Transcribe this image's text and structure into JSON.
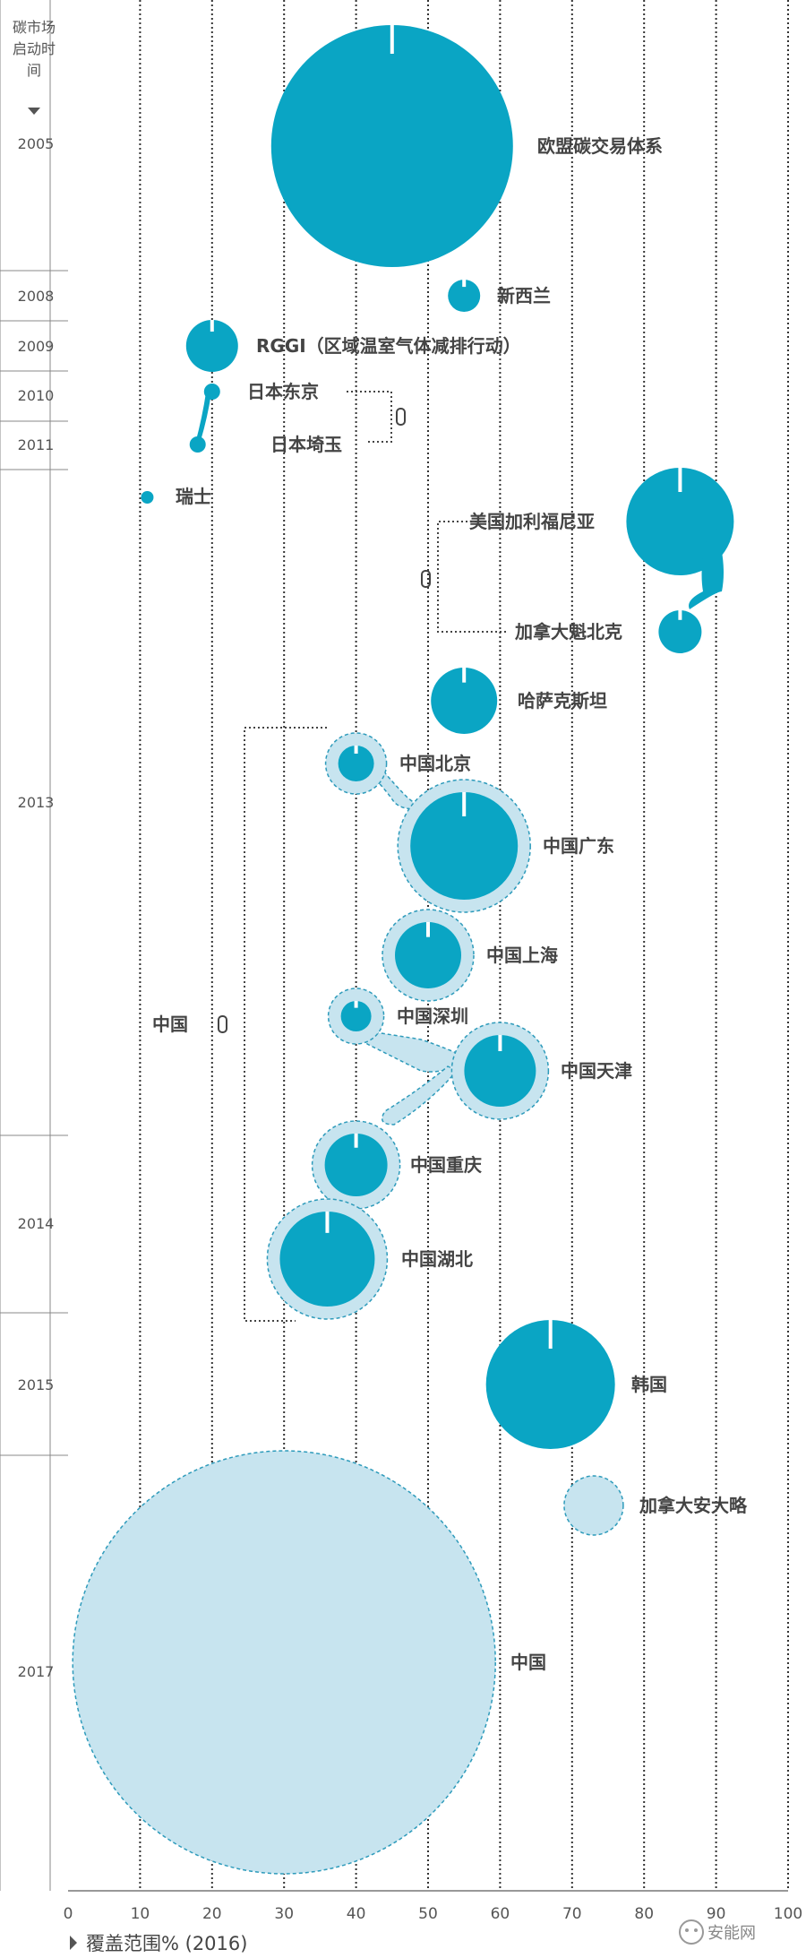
{
  "chart_data": {
    "type": "scatter",
    "title": "",
    "ytitle_lines": [
      "碳市场",
      "启动时",
      "间"
    ],
    "xlabel": "覆盖范围% (2016)",
    "xlim": [
      0,
      100
    ],
    "xticks": [
      0,
      10,
      20,
      30,
      40,
      50,
      60,
      70,
      80,
      90,
      100
    ],
    "years": [
      "2005",
      "2008",
      "2009",
      "2010",
      "2011",
      "2013",
      "2014",
      "2015",
      "2017"
    ],
    "colors": {
      "dark": "#0aa5c4",
      "light": "#c7e4ef",
      "lightStroke": "#2e9bbb"
    },
    "points": [
      {
        "name": "欧盟碳交易体系",
        "year": "2005",
        "coverage": 45,
        "size": "largest",
        "kind": "dark"
      },
      {
        "name": "新西兰",
        "year": "2008",
        "coverage": 55,
        "size": "small",
        "kind": "dark"
      },
      {
        "name": "RGGI（区域温室气体减排行动）",
        "year": "2009",
        "coverage": 20,
        "size": "small",
        "kind": "dark"
      },
      {
        "name": "日本东京",
        "year": "2010",
        "coverage": 20,
        "size": "tiny",
        "kind": "dark"
      },
      {
        "name": "日本埼玉",
        "year": "2011",
        "coverage": 18,
        "size": "tiny",
        "kind": "dark"
      },
      {
        "name": "瑞士",
        "year": "2013",
        "coverage": 11,
        "size": "tiny",
        "kind": "dark"
      },
      {
        "name": "美国加利福尼亚",
        "year": "2013",
        "coverage": 85,
        "size": "large",
        "kind": "dark"
      },
      {
        "name": "加拿大魁北克",
        "year": "2013",
        "coverage": 85,
        "size": "small",
        "kind": "dark"
      },
      {
        "name": "哈萨克斯坦",
        "year": "2013",
        "coverage": 55,
        "size": "medium",
        "kind": "dark"
      },
      {
        "name": "中国北京",
        "year": "2013",
        "coverage": 40,
        "size": "small",
        "kind": "dark"
      },
      {
        "name": "中国广东",
        "year": "2013",
        "coverage": 55,
        "size": "large",
        "kind": "dark"
      },
      {
        "name": "中国上海",
        "year": "2013",
        "coverage": 50,
        "size": "medium",
        "kind": "dark"
      },
      {
        "name": "中国深圳",
        "year": "2013",
        "coverage": 40,
        "size": "small",
        "kind": "dark"
      },
      {
        "name": "中国天津",
        "year": "2013",
        "coverage": 60,
        "size": "medium",
        "kind": "dark"
      },
      {
        "name": "中国重庆",
        "year": "2014",
        "coverage": 40,
        "size": "medium",
        "kind": "dark"
      },
      {
        "name": "中国湖北",
        "year": "2014",
        "coverage": 36,
        "size": "large",
        "kind": "dark"
      },
      {
        "name": "韩国",
        "year": "2015",
        "coverage": 67,
        "size": "large",
        "kind": "dark"
      },
      {
        "name": "加拿大安大略",
        "year": "2017",
        "coverage": 73,
        "size": "small",
        "kind": "light"
      },
      {
        "name": "中国",
        "year": "2017",
        "coverage": 30,
        "size": "largest",
        "kind": "light"
      }
    ],
    "groups": [
      {
        "name": "中国",
        "note": "linked regional pilots"
      }
    ]
  },
  "watermark": "安能网"
}
